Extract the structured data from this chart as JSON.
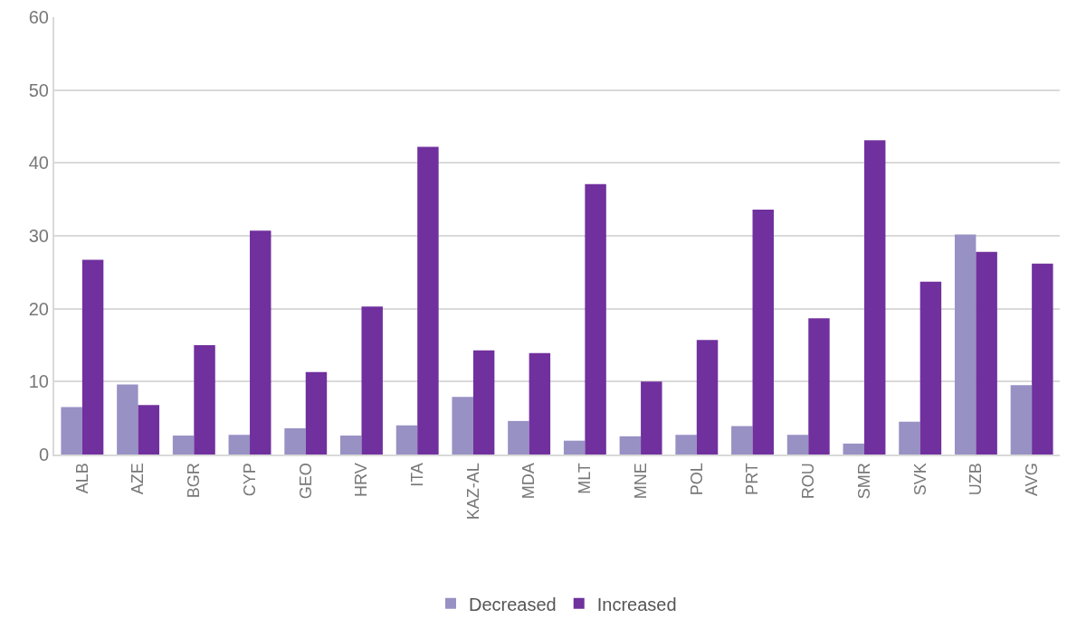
{
  "chart_data": {
    "type": "bar",
    "categories": [
      "ALB",
      "AZE",
      "BGR",
      "CYP",
      "GEO",
      "HRV",
      "ITA",
      "KAZ-AL",
      "MDA",
      "MLT",
      "MNE",
      "POL",
      "PRT",
      "ROU",
      "SMR",
      "SVK",
      "UZB",
      "AVG"
    ],
    "series": [
      {
        "name": "Decreased",
        "color": "#9891c4",
        "values": [
          6.5,
          9.6,
          2.6,
          2.7,
          3.6,
          2.6,
          4.0,
          7.9,
          4.6,
          1.9,
          2.5,
          2.7,
          3.9,
          2.7,
          1.5,
          4.5,
          30.2,
          9.5
        ]
      },
      {
        "name": "Increased",
        "color": "#70309e",
        "values": [
          26.7,
          6.8,
          15.0,
          30.7,
          11.3,
          20.3,
          42.2,
          14.3,
          13.9,
          37.1,
          10.0,
          15.7,
          33.6,
          18.7,
          43.1,
          23.7,
          27.8,
          26.2
        ]
      }
    ],
    "ylim": [
      0,
      60
    ],
    "yticks": [
      0,
      10,
      20,
      30,
      40,
      50,
      60
    ],
    "grid": "y",
    "legend": "bottom"
  }
}
